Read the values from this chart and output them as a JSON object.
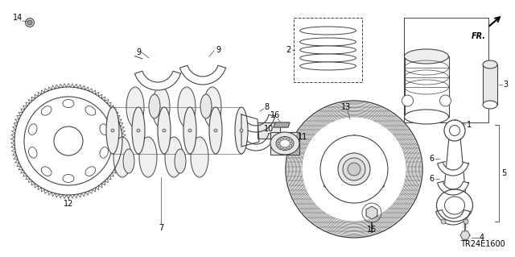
{
  "background_color": "#ffffff",
  "line_color": "#444444",
  "diagram_code": "TR24E1600",
  "fr_label": "FR.",
  "font_size_parts": 7,
  "font_size_code": 7
}
